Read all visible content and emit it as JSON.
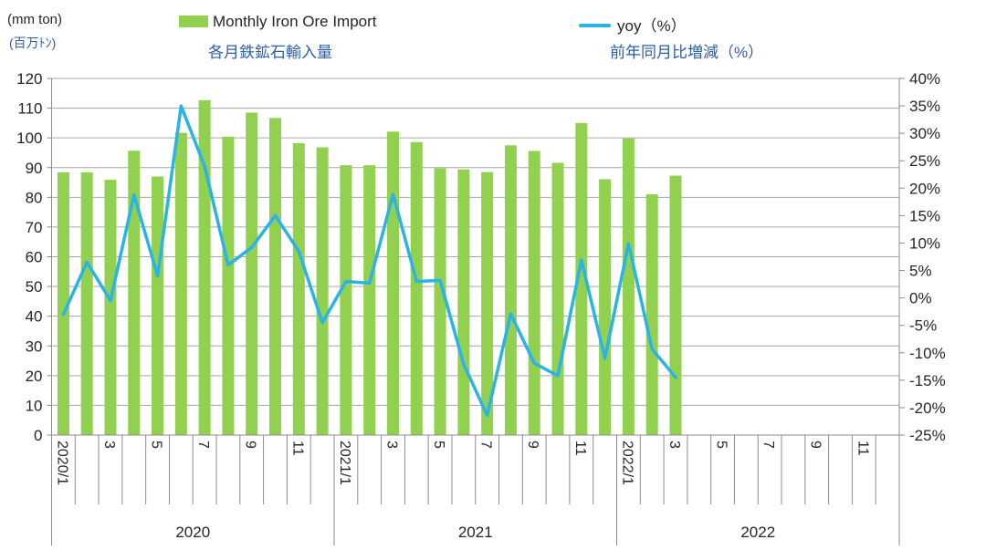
{
  "header": {
    "unit_left_en": "(mm ton)",
    "unit_left_ja": "(百万ﾄﾝ)",
    "legend_bar_label": "Monthly Iron Ore Import",
    "legend_bar_sublabel": "各月鉄鉱石輸入量",
    "legend_line_label": "yoy（%）",
    "legend_line_sublabel": "前年同月比増減（%）"
  },
  "colors": {
    "bar": "#92d050",
    "line": "#2bb3e6",
    "blue_text": "#2e5fa5",
    "axis_text": "#262626",
    "gridline": "#a6a6a6",
    "axis_line": "#8c8c8c"
  },
  "chart_data": {
    "type": "combo-bar-line",
    "categories": [
      "2020/1",
      "2020/2",
      "2020/3",
      "2020/4",
      "2020/5",
      "2020/6",
      "2020/7",
      "2020/8",
      "2020/9",
      "2020/10",
      "2020/11",
      "2020/12",
      "2021/1",
      "2021/2",
      "2021/3",
      "2021/4",
      "2021/5",
      "2021/6",
      "2021/7",
      "2021/8",
      "2021/9",
      "2021/10",
      "2021/11",
      "2021/12",
      "2022/1",
      "2022/2",
      "2022/3",
      "2022/4",
      "2022/5",
      "2022/6",
      "2022/7",
      "2022/8",
      "2022/9",
      "2022/10",
      "2022/11",
      "2022/12"
    ],
    "series": [
      {
        "name": "Monthly Iron Ore Import",
        "type": "bar",
        "axis": "left",
        "color": "#92d050",
        "values": [
          88.4,
          88.4,
          85.9,
          95.7,
          87.0,
          101.7,
          112.7,
          100.4,
          108.5,
          106.7,
          98.2,
          96.8,
          90.8,
          90.8,
          102.1,
          98.6,
          89.8,
          89.4,
          88.5,
          97.5,
          95.6,
          91.6,
          105.0,
          86.1,
          99.8,
          81.0,
          87.3,
          null,
          null,
          null,
          null,
          null,
          null,
          null,
          null,
          null
        ]
      },
      {
        "name": "yoy（%）",
        "type": "line",
        "axis": "right",
        "color": "#2bb3e6",
        "values": [
          -3.0,
          6.5,
          -0.5,
          18.8,
          4.0,
          35.0,
          24.0,
          6.0,
          9.2,
          15.0,
          8.5,
          -4.5,
          3.0,
          2.7,
          18.9,
          3.0,
          3.2,
          -12.1,
          -21.4,
          -2.9,
          -11.9,
          -14.2,
          6.9,
          -11.0,
          9.9,
          -9.3,
          -14.5,
          null,
          null,
          null,
          null,
          null,
          null,
          null,
          null,
          null
        ]
      }
    ],
    "x_tick_labels": [
      "2020/1",
      "3",
      "5",
      "7",
      "9",
      "11",
      "2021/1",
      "3",
      "5",
      "7",
      "9",
      "11",
      "2022/1",
      "3",
      "5",
      "7",
      "9",
      "11"
    ],
    "year_groups": [
      "2020",
      "2021",
      "2022"
    ],
    "left_axis": {
      "min": 0,
      "max": 120,
      "step": 10,
      "ticks": [
        "120",
        "110",
        "100",
        "90",
        "80",
        "70",
        "60",
        "50",
        "40",
        "30",
        "20",
        "10",
        "0"
      ]
    },
    "right_axis": {
      "min": -25,
      "max": 40,
      "step": 5,
      "ticks": [
        "40%",
        "35%",
        "30%",
        "25%",
        "20%",
        "15%",
        "10%",
        "5%",
        "0%",
        "-5%",
        "-10%",
        "-15%",
        "-20%",
        "-25%"
      ]
    },
    "grid": "horizontal",
    "legend_position": "top"
  }
}
